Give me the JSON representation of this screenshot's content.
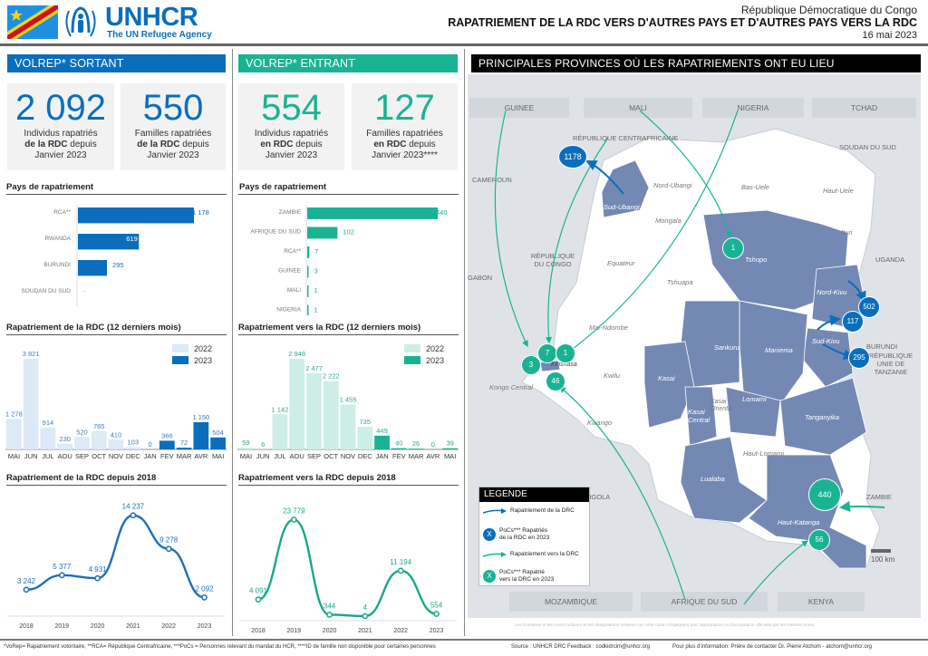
{
  "header": {
    "logo_text": "UNHCR",
    "logo_tagline": "The UN Refugee Agency",
    "country": "République Démocratique du Congo",
    "title": "RAPATRIEMENT DE LA RDC VERS D'AUTRES PAYS ET D'AUTRES PAYS VERS LA RDC",
    "date": "16 mai 2023"
  },
  "colors": {
    "blue": "#0a6ebd",
    "teal": "#19b394",
    "light_blue": "#dce9f6",
    "light_teal": "#cdeee6",
    "province": "#7488b4"
  },
  "outgoing": {
    "section_title": "VOLREP* SORTANT",
    "kpis": [
      {
        "value": "2 092",
        "line1": "Individus rapatriés",
        "bold": "de la RDC",
        "line2rest": " depuis",
        "line3": "Janvier 2023"
      },
      {
        "value": "550",
        "line1": "Familles rapatriées",
        "bold": "de la RDC",
        "line2rest": " depuis",
        "line3": "Janvier 2023"
      }
    ],
    "countries_title": "Pays de rapatriement",
    "monthly_title": "Rapatriement de la RDC (12 derniers mois)",
    "yearly_title": "Rapatriement de la RDC depuis 2018"
  },
  "incoming": {
    "section_title": "VOLREP* ENTRANT",
    "kpis": [
      {
        "value": "554",
        "line1": "Individus rapatriés",
        "bold": "en RDC",
        "line2rest": " depuis",
        "line3": "Janvier 2023"
      },
      {
        "value": "127",
        "line1": "Familles rapatriées",
        "bold": "en RDC",
        "line2rest": " depuis",
        "line3": "Janvier 2023****"
      }
    ],
    "countries_title": "Pays de rapatriement",
    "monthly_title": "Rapatriement vers la RDC (12 derniers mois)",
    "yearly_title": "Rapatriement vers la RDC depuis 2018"
  },
  "chart_data": [
    {
      "id": "out_countries",
      "type": "bar",
      "orientation": "horizontal",
      "title": "Pays de rapatriement",
      "categories": [
        "RCA**",
        "RWANDA",
        "BURUNDI",
        "SOUDAN DU SUD"
      ],
      "values": [
        1178,
        619,
        295,
        null
      ],
      "labels": [
        "1 178",
        "619",
        "295",
        "-"
      ],
      "xlim": [
        0,
        1178
      ]
    },
    {
      "id": "in_countries",
      "type": "bar",
      "orientation": "horizontal",
      "title": "Pays de rapatriement",
      "categories": [
        "ZAMBIE",
        "AFRIQUE DU SUD",
        "RCA**",
        "GUINEE",
        "MALI",
        "NIGERIA"
      ],
      "values": [
        440,
        102,
        7,
        3,
        1,
        1
      ],
      "labels": [
        "440",
        "102",
        "7",
        "3",
        "1",
        "1"
      ],
      "xlim": [
        0,
        440
      ]
    },
    {
      "id": "out_monthly",
      "type": "bar",
      "title": "Rapatriement de la RDC (12 derniers mois)",
      "categories": [
        "MAI",
        "JUN",
        "JUL",
        "AOU",
        "SEP",
        "OCT",
        "NOV",
        "DEC",
        "JAN",
        "FEV",
        "MAR",
        "AVR",
        "MAI"
      ],
      "values": [
        1278,
        3821,
        914,
        230,
        520,
        765,
        410,
        103,
        0,
        366,
        72,
        1150,
        504
      ],
      "labels": [
        "1 278",
        "3 821",
        "914",
        "230",
        "520",
        "765",
        "410",
        "103",
        "0",
        "366",
        "72",
        "1 150",
        "504"
      ],
      "year": [
        "2022",
        "2022",
        "2022",
        "2022",
        "2022",
        "2022",
        "2022",
        "2022",
        "2023",
        "2023",
        "2023",
        "2023",
        "2023"
      ],
      "legend": [
        "2022",
        "2023"
      ],
      "legend_position": "top-right",
      "ylim": [
        0,
        3821
      ]
    },
    {
      "id": "in_monthly",
      "type": "bar",
      "title": "Rapatriement vers la RDC (12 derniers mois)",
      "categories": [
        "MAI",
        "JUN",
        "JUL",
        "AOU",
        "SEP",
        "OCT",
        "NOV",
        "DEC",
        "JAN",
        "FEV",
        "MAR",
        "AVR",
        "MAI"
      ],
      "values": [
        59,
        6,
        1142,
        2948,
        2477,
        2222,
        1455,
        735,
        449,
        40,
        26,
        0,
        39
      ],
      "labels": [
        "59",
        "6",
        "1 142",
        "2 948",
        "2 477",
        "2 222",
        "1 455",
        "735",
        "449",
        "40",
        "26",
        "0",
        "39"
      ],
      "year": [
        "2022",
        "2022",
        "2022",
        "2022",
        "2022",
        "2022",
        "2022",
        "2022",
        "2023",
        "2023",
        "2023",
        "2023",
        "2023"
      ],
      "legend": [
        "2022",
        "2023"
      ],
      "legend_position": "top-right",
      "ylim": [
        0,
        2948
      ]
    },
    {
      "id": "out_yearly",
      "type": "line",
      "title": "Rapatriement de la RDC depuis 2018",
      "x": [
        "2018",
        "2019",
        "2020",
        "2021",
        "2022",
        "2023"
      ],
      "values": [
        3242,
        5377,
        4931,
        14237,
        9278,
        2092
      ],
      "labels": [
        "3 242",
        "5 377",
        "4 931",
        "14 237",
        "9 278",
        "2 092"
      ],
      "ylim": [
        0,
        15000
      ]
    },
    {
      "id": "in_yearly",
      "type": "line",
      "title": "Rapatriement vers la RDC depuis 2018",
      "x": [
        "2018",
        "2019",
        "2020",
        "2021",
        "2022",
        "2023"
      ],
      "values": [
        4091,
        23779,
        344,
        4,
        11194,
        554
      ],
      "labels": [
        "4 091",
        "23 779",
        "344",
        "4",
        "11 194",
        "554"
      ],
      "ylim": [
        0,
        25000
      ]
    }
  ],
  "map": {
    "title": "PRINCIPALES PROVINCES OÙ LES RAPATRIEMENTS ONT EU LIEU",
    "top_countries": [
      "GUINEE",
      "MALI",
      "NIGERIA",
      "TCHAD"
    ],
    "bottom_countries": [
      "MOZAMBIQUE",
      "AFRIQUE DU SUD",
      "KENYA"
    ],
    "neighbor_labels": [
      "RÉPUBLIQUE CENTRAFRICAINE",
      "SOUDAN DU SUD",
      "CAMEROUN",
      "GABON",
      "RÉPUBLIQUE DU CONGO",
      "UGANDA",
      "BURUNDI",
      "RÉPUBLIQUE UNIE DE TANZANIE",
      "ANGOLA",
      "ZAMBIE"
    ],
    "provinces": [
      "Nord-Ubangi",
      "Bas-Uele",
      "Haut-Uele",
      "Sud-Ubangi",
      "Mongala",
      "Ituri",
      "Equateur",
      "Tshopo",
      "Tshuapa",
      "Nord-Kivu",
      "Mai-Ndombe",
      "Sankuru",
      "Maniema",
      "Sud-Kivu",
      "Kinshasa",
      "Kongo Central",
      "Kwilu",
      "Kasai",
      "Kasai Oriental",
      "Lomami",
      "Kasai Central",
      "Tanganyika",
      "Kwango",
      "Haut-Lomami",
      "Lualaba",
      "Haut-Katanga"
    ],
    "outgoing_bubbles": [
      {
        "destination": "RCA",
        "value": "1178"
      },
      {
        "destination": "Rwanda",
        "value": "502"
      },
      {
        "destination": "Rwanda",
        "value": "117"
      },
      {
        "destination": "Burundi",
        "value": "295"
      }
    ],
    "incoming_bubbles": [
      {
        "province": "Tshopo",
        "value": "1"
      },
      {
        "province": "Kinshasa",
        "value": "7"
      },
      {
        "province": "Kinshasa",
        "value": "1"
      },
      {
        "province": "Kinshasa",
        "value": "3"
      },
      {
        "province": "Kinshasa",
        "value": "46"
      },
      {
        "province": "Haut-Katanga",
        "value": "440"
      },
      {
        "province": "Haut-Katanga",
        "value": "56"
      }
    ],
    "scale": "100 km",
    "disclaimer": "Les frontières et les noms indiqués et les désignations utilisées sur cette carte n'impliquent pas l'approbation ou l'acceptation officielle par les Nations Unies.",
    "legend": {
      "title": "LEGENDE",
      "items": [
        {
          "label": "Rapatriement de la DRC"
        },
        {
          "symbol": "X",
          "line1": "PoCs*** Rapatriés",
          "line2": "de la RDC en 2023"
        },
        {
          "label": "Rapatriement vers la DRC"
        },
        {
          "symbol": "X",
          "line1": "PoCs*** Rapatrié",
          "line2": "vers la DRC en 2023"
        }
      ]
    }
  },
  "footer": {
    "notes": "*VoRep= Rapatriement volontaire, **RCA= République Centrafricaine, ***PoCs = Personnes relevant du mandat du HCR, ****ID de famille non disponible pour certaines personnes",
    "source": "Source : UNHCR DRC Feedback : codkidrcim@unhcr.org",
    "contact": "Pour plus d'information: Prière de contacter Dr. Pierre Atchom - atchom@unhcr.org"
  }
}
